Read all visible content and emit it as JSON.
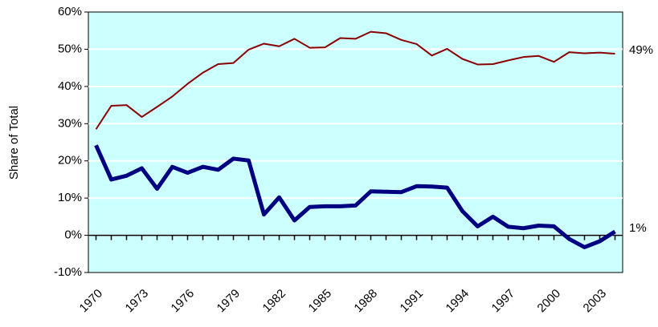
{
  "chart_data": {
    "type": "line",
    "y_label": "Share of Total",
    "x": [
      1970,
      1971,
      1972,
      1973,
      1974,
      1975,
      1976,
      1977,
      1978,
      1979,
      1980,
      1981,
      1982,
      1983,
      1984,
      1985,
      1986,
      1987,
      1988,
      1989,
      1990,
      1991,
      1992,
      1993,
      1994,
      1995,
      1996,
      1997,
      1998,
      1999,
      2000,
      2001,
      2002,
      2003,
      2004
    ],
    "series": [
      {
        "color": "#8b0000",
        "width": 2,
        "values": [
          28.5,
          34.8,
          35,
          31.8,
          34.5,
          37.3,
          40.7,
          43.7,
          46,
          46.3,
          49.9,
          51.5,
          50.8,
          52.8,
          50.4,
          50.5,
          53,
          52.8,
          54.7,
          54.3,
          52.5,
          51.4,
          48.3,
          50.1,
          47.4,
          45.9,
          46,
          47,
          47.9,
          48.2,
          46.6,
          49.2,
          48.9,
          49.1,
          48.8
        ],
        "value_labels": [
          null,
          null,
          null,
          null,
          null,
          null,
          null,
          null,
          null,
          null,
          null,
          null,
          null,
          null,
          null,
          null,
          null,
          null,
          null,
          null,
          null,
          null,
          null,
          null,
          null,
          null,
          null,
          null,
          null,
          null,
          null,
          null,
          null,
          null,
          "49%"
        ]
      },
      {
        "color": "#000080",
        "width": 5,
        "values": [
          24.2,
          15,
          16,
          18,
          12.5,
          18.4,
          16.8,
          18.4,
          17.6,
          20.6,
          20.1,
          5.6,
          10.2,
          4,
          7.6,
          7.8,
          7.8,
          8,
          11.8,
          11.7,
          11.6,
          13.2,
          13.1,
          12.8,
          6.5,
          2.4,
          5,
          2.3,
          1.9,
          2.6,
          2.4,
          -1,
          -3.2,
          -1.6,
          1
        ],
        "value_labels": [
          null,
          null,
          null,
          null,
          null,
          null,
          null,
          null,
          null,
          null,
          null,
          null,
          null,
          null,
          null,
          null,
          null,
          null,
          null,
          null,
          null,
          null,
          null,
          null,
          null,
          null,
          null,
          null,
          null,
          null,
          null,
          null,
          null,
          null,
          "1%"
        ]
      }
    ],
    "xlim": [
      1969.5,
      2004.5
    ],
    "xticks": [
      1970,
      1973,
      1976,
      1979,
      1982,
      1985,
      1988,
      1991,
      1994,
      1997,
      2000,
      2003
    ],
    "ylim": [
      -10,
      60
    ],
    "yticks": [
      {
        "value": -10,
        "label": "-10%"
      },
      {
        "value": 0,
        "label": "0%"
      },
      {
        "value": 10,
        "label": "10%"
      },
      {
        "value": 20,
        "label": "20%"
      },
      {
        "value": 30,
        "label": "30%"
      },
      {
        "value": 40,
        "label": "40%"
      },
      {
        "value": 50,
        "label": "50%"
      },
      {
        "value": 60,
        "label": "60%"
      }
    ],
    "grid": true,
    "background": "#ccffff"
  }
}
